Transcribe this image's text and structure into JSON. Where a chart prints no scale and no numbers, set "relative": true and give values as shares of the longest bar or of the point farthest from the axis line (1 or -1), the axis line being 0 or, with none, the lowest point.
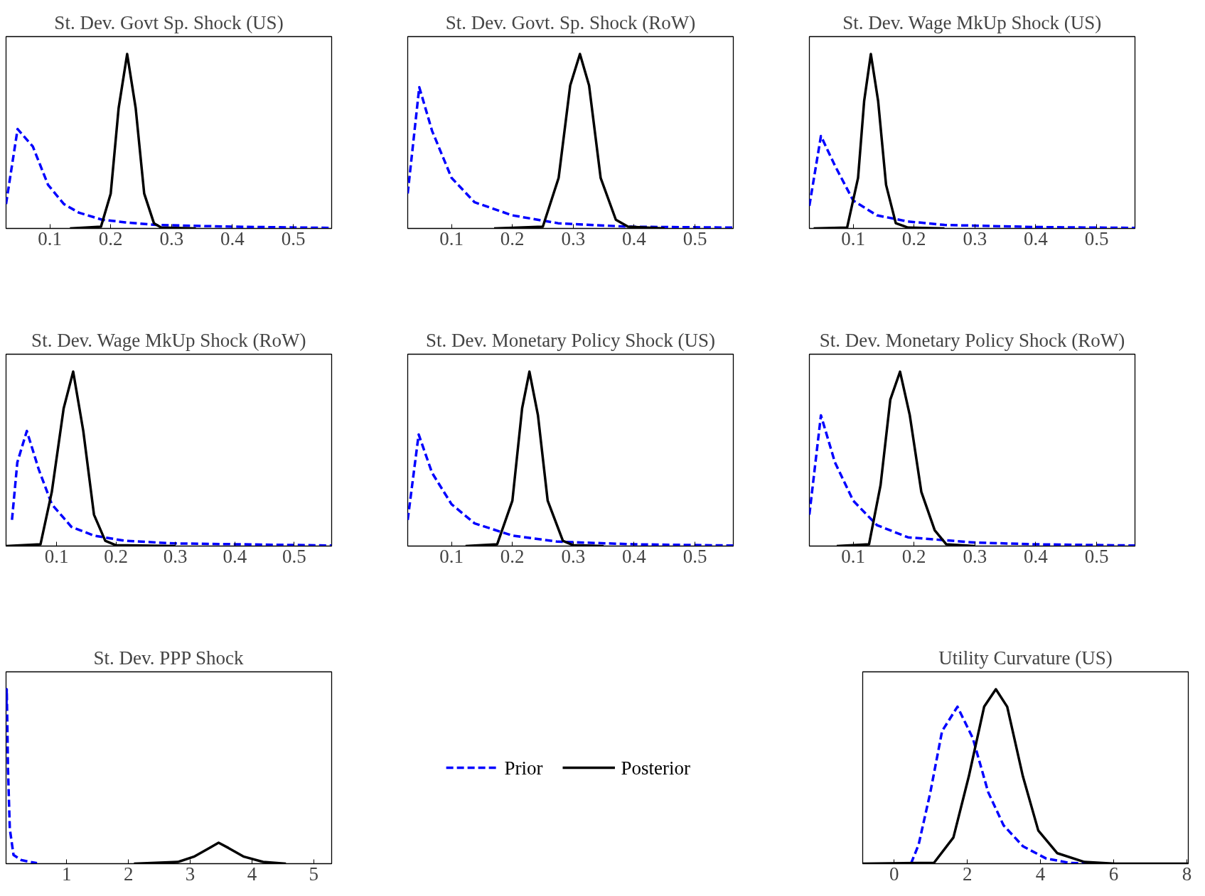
{
  "chart_data": [
    {
      "type": "line",
      "title": "St. Dev. Govt Sp. Shock (US)",
      "relative": true,
      "tick_labels": "x",
      "grid": false,
      "xlim": [
        0.028,
        0.563
      ],
      "xticks": [
        0.1,
        0.2,
        0.3,
        0.4,
        0.5
      ],
      "series": [
        {
          "color": "#0000ff",
          "line_style": "dashed",
          "x": [
            0.028,
            0.047,
            0.072,
            0.097,
            0.123,
            0.148,
            0.186,
            0.224,
            0.275,
            0.4,
            0.563
          ],
          "values": [
            0.14,
            0.57,
            0.47,
            0.25,
            0.14,
            0.09,
            0.05,
            0.035,
            0.02,
            0.01,
            0.003
          ]
        },
        {
          "color": "#000000",
          "line_style": "solid",
          "x": [
            0.133,
            0.184,
            0.2,
            0.213,
            0.227,
            0.241,
            0.255,
            0.271,
            0.283,
            0.34
          ],
          "values": [
            0,
            0.01,
            0.2,
            0.69,
            1,
            0.69,
            0.2,
            0.03,
            0.005,
            0
          ]
        }
      ]
    },
    {
      "type": "line",
      "title": "St. Dev. Govt. Sp. Shock (RoW)",
      "relative": true,
      "tick_labels": "x",
      "grid": false,
      "xlim": [
        0.028,
        0.563
      ],
      "xticks": [
        0.1,
        0.2,
        0.3,
        0.4,
        0.5
      ],
      "series": [
        {
          "color": "#0000ff",
          "line_style": "dashed",
          "x": [
            0.028,
            0.047,
            0.068,
            0.1,
            0.138,
            0.2,
            0.275,
            0.39,
            0.563
          ],
          "values": [
            0.2,
            0.81,
            0.56,
            0.29,
            0.15,
            0.075,
            0.03,
            0.01,
            0.005
          ]
        },
        {
          "color": "#000000",
          "line_style": "solid",
          "x": [
            0.17,
            0.25,
            0.276,
            0.295,
            0.311,
            0.326,
            0.345,
            0.37,
            0.39,
            0.45
          ],
          "values": [
            0,
            0.01,
            0.29,
            0.82,
            1,
            0.82,
            0.29,
            0.05,
            0.01,
            0
          ]
        }
      ]
    },
    {
      "type": "line",
      "title": "St. Dev. Wage MkUp Shock (US)",
      "relative": true,
      "tick_labels": "x",
      "grid": false,
      "xlim": [
        0.028,
        0.563
      ],
      "xticks": [
        0.1,
        0.2,
        0.3,
        0.4,
        0.5
      ],
      "series": [
        {
          "color": "#0000ff",
          "line_style": "dashed",
          "x": [
            0.028,
            0.047,
            0.07,
            0.1,
            0.139,
            0.19,
            0.25,
            0.4,
            0.563
          ],
          "values": [
            0.13,
            0.53,
            0.36,
            0.16,
            0.075,
            0.04,
            0.02,
            0.008,
            0.003
          ]
        },
        {
          "color": "#000000",
          "line_style": "solid",
          "x": [
            0.035,
            0.09,
            0.108,
            0.118,
            0.129,
            0.141,
            0.154,
            0.17,
            0.19,
            0.25
          ],
          "values": [
            0,
            0.005,
            0.29,
            0.73,
            1,
            0.73,
            0.25,
            0.03,
            0.005,
            0
          ]
        }
      ]
    },
    {
      "type": "line",
      "title": "St. Dev. Wage MkUp Shock (RoW)",
      "relative": true,
      "tick_labels": "x",
      "grid": false,
      "xlim": [
        0.015,
        0.563
      ],
      "xticks": [
        0.1,
        0.2,
        0.3,
        0.4,
        0.5
      ],
      "series": [
        {
          "color": "#0000ff",
          "line_style": "dashed",
          "x": [
            0.025,
            0.034,
            0.05,
            0.07,
            0.092,
            0.125,
            0.163,
            0.215,
            0.3,
            0.563
          ],
          "values": [
            0.15,
            0.48,
            0.66,
            0.44,
            0.24,
            0.11,
            0.06,
            0.03,
            0.015,
            0.003
          ]
        },
        {
          "color": "#000000",
          "line_style": "solid",
          "x": [
            0.015,
            0.073,
            0.092,
            0.112,
            0.128,
            0.145,
            0.163,
            0.182,
            0.2,
            0.3
          ],
          "values": [
            0,
            0.01,
            0.31,
            0.79,
            1,
            0.66,
            0.18,
            0.03,
            0.005,
            0
          ]
        }
      ]
    },
    {
      "type": "line",
      "title": "St. Dev. Monetary Policy Shock (US)",
      "relative": true,
      "tick_labels": "x",
      "grid": false,
      "xlim": [
        0.028,
        0.563
      ],
      "xticks": [
        0.1,
        0.2,
        0.3,
        0.4,
        0.5
      ],
      "series": [
        {
          "color": "#0000ff",
          "line_style": "dashed",
          "x": [
            0.028,
            0.046,
            0.068,
            0.1,
            0.138,
            0.2,
            0.275,
            0.4,
            0.563
          ],
          "values": [
            0.15,
            0.64,
            0.42,
            0.24,
            0.13,
            0.06,
            0.025,
            0.01,
            0.003
          ]
        },
        {
          "color": "#000000",
          "line_style": "solid",
          "x": [
            0.123,
            0.175,
            0.2,
            0.216,
            0.228,
            0.242,
            0.258,
            0.283,
            0.3,
            0.35
          ],
          "values": [
            0,
            0.01,
            0.26,
            0.79,
            1,
            0.75,
            0.26,
            0.03,
            0.005,
            0
          ]
        }
      ]
    },
    {
      "type": "line",
      "title": "St. Dev. Monetary Policy Shock (RoW)",
      "relative": true,
      "tick_labels": "x",
      "grid": false,
      "xlim": [
        0.028,
        0.563
      ],
      "xticks": [
        0.1,
        0.2,
        0.3,
        0.4,
        0.5
      ],
      "series": [
        {
          "color": "#0000ff",
          "line_style": "dashed",
          "x": [
            0.028,
            0.047,
            0.07,
            0.1,
            0.139,
            0.19,
            0.3,
            0.4,
            0.563
          ],
          "values": [
            0.18,
            0.75,
            0.48,
            0.26,
            0.12,
            0.05,
            0.02,
            0.01,
            0.003
          ]
        },
        {
          "color": "#000000",
          "line_style": "solid",
          "x": [
            0.073,
            0.126,
            0.145,
            0.161,
            0.177,
            0.193,
            0.212,
            0.234,
            0.253,
            0.3
          ],
          "values": [
            0,
            0.01,
            0.35,
            0.84,
            1,
            0.75,
            0.31,
            0.09,
            0.01,
            0
          ]
        }
      ]
    },
    {
      "type": "line",
      "title": "St. Dev. PPP Shock",
      "relative": true,
      "tick_labels": "x",
      "grid": false,
      "xlim": [
        0.019,
        5.29
      ],
      "xticks": [
        1,
        2,
        3,
        4,
        5
      ],
      "series": [
        {
          "color": "#0000ff",
          "line_style": "dashed",
          "x": [
            0.025,
            0.03,
            0.04,
            0.05,
            0.08,
            0.14,
            0.27,
            0.52
          ],
          "values": [
            0.9,
            1,
            0.8,
            0.55,
            0.2,
            0.05,
            0.02,
            0.003
          ]
        },
        {
          "color": "#000000",
          "line_style": "solid",
          "x": [
            2.09,
            2.8,
            3.06,
            3.31,
            3.46,
            3.62,
            3.87,
            4.18,
            4.55
          ],
          "values": [
            0,
            0.01,
            0.04,
            0.09,
            0.12,
            0.09,
            0.04,
            0.01,
            0
          ]
        }
      ]
    },
    {
      "type": "line",
      "title": "Utility Curvature (US)",
      "relative": true,
      "tick_labels": "x",
      "grid": false,
      "legend": "left",
      "xlim": [
        -0.86,
        8.04
      ],
      "xticks": [
        0,
        2,
        4,
        6,
        8
      ],
      "series": [
        {
          "name": "Prior",
          "color": "#0000ff",
          "line_style": "dashed",
          "x": [
            0.46,
            0.67,
            0.99,
            1.31,
            1.73,
            2.15,
            2.57,
            2.99,
            3.52,
            4.15,
            4.78,
            5.41
          ],
          "values": [
            0,
            0.11,
            0.41,
            0.76,
            0.9,
            0.72,
            0.41,
            0.22,
            0.1,
            0.03,
            0.005,
            0
          ]
        },
        {
          "name": "Posterior",
          "color": "#000000",
          "line_style": "solid",
          "x": [
            -0.86,
            1.09,
            1.62,
            2.04,
            2.46,
            2.78,
            3.09,
            3.52,
            3.94,
            4.46,
            5.2,
            6.04,
            8.04
          ],
          "values": [
            0,
            0.005,
            0.15,
            0.5,
            0.9,
            1,
            0.9,
            0.5,
            0.19,
            0.06,
            0.01,
            0,
            0
          ]
        }
      ]
    }
  ]
}
